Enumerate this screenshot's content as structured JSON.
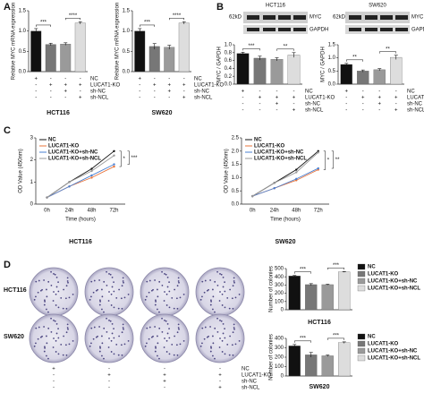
{
  "panel_labels": [
    "A",
    "B",
    "C",
    "D"
  ],
  "sign_table": {
    "rows": [
      "NC",
      "LUCAT1-KO",
      "sh-NC",
      "sh-NCL"
    ],
    "marks": [
      [
        "+",
        "-",
        "-",
        "-"
      ],
      [
        "-",
        "+",
        "+",
        "+"
      ],
      [
        "-",
        "-",
        "+",
        "-"
      ],
      [
        "-",
        "-",
        "-",
        "+"
      ]
    ]
  },
  "blot_labels": {
    "size": "62kD",
    "target": "MYC",
    "control": "GAPDH"
  },
  "chart_data": [
    {
      "type": "bar",
      "title": "HCT116",
      "ylabel": "Relative MYC mRNA expression",
      "values": [
        1.0,
        0.67,
        0.68,
        1.2
      ],
      "errors": [
        0.06,
        0.03,
        0.03,
        0.03
      ],
      "colors": [
        "#111111",
        "#777777",
        "#9a9a9a",
        "#dddddd"
      ],
      "ylim": [
        0,
        1.5
      ],
      "yticks": [
        {
          "value": 0,
          "label": "0.0"
        },
        {
          "value": 0.5,
          "label": "0.5"
        },
        {
          "value": 1,
          "label": "1.0"
        },
        {
          "value": 1.5,
          "label": "1.5"
        }
      ],
      "annotations": [
        "***",
        "****"
      ]
    },
    {
      "type": "bar",
      "title": "SW620",
      "ylabel": "Relative MYC mRNA expression",
      "values": [
        1.0,
        0.62,
        0.6,
        1.2
      ],
      "errors": [
        0.06,
        0.07,
        0.05,
        0.03
      ],
      "colors": [
        "#111111",
        "#777777",
        "#9a9a9a",
        "#dddddd"
      ],
      "ylim": [
        0,
        1.5
      ],
      "yticks": [
        {
          "value": 0,
          "label": "0.0"
        },
        {
          "value": 0.5,
          "label": "0.5"
        },
        {
          "value": 1,
          "label": "1.0"
        },
        {
          "value": 1.5,
          "label": "1.5"
        }
      ],
      "annotations": [
        "***",
        "****"
      ]
    },
    {
      "type": "bar",
      "title": "HCT116",
      "ylabel": "MYC / GAPDH",
      "values": [
        0.78,
        0.66,
        0.63,
        0.74
      ],
      "errors": [
        0.03,
        0.05,
        0.04,
        0.06
      ],
      "colors": [
        "#111111",
        "#777777",
        "#9a9a9a",
        "#dddddd"
      ],
      "ylim": [
        0,
        1.0
      ],
      "yticks": [
        {
          "value": 0,
          "label": "0.0"
        },
        {
          "value": 0.2,
          "label": "0.2"
        },
        {
          "value": 0.4,
          "label": "0.4"
        },
        {
          "value": 0.6,
          "label": "0.6"
        },
        {
          "value": 0.8,
          "label": "0.8"
        },
        {
          "value": 1,
          "label": "1.0"
        }
      ],
      "annotations": [
        "***",
        "**"
      ]
    },
    {
      "type": "bar",
      "title": "SW620",
      "ylabel": "MYC / GAPDH",
      "values": [
        0.75,
        0.5,
        0.55,
        1.02
      ],
      "errors": [
        0.04,
        0.04,
        0.04,
        0.08
      ],
      "colors": [
        "#111111",
        "#777777",
        "#9a9a9a",
        "#dddddd"
      ],
      "ylim": [
        0,
        1.5
      ],
      "yticks": [
        {
          "value": 0,
          "label": "0.0"
        },
        {
          "value": 0.5,
          "label": "0.5"
        },
        {
          "value": 1,
          "label": "1.0"
        },
        {
          "value": 1.5,
          "label": "1.5"
        }
      ],
      "annotations": [
        "**",
        "**"
      ]
    },
    {
      "type": "line",
      "title": "HCT116",
      "xlabel": "Time (hours)",
      "ylabel": "OD Value (450nm)",
      "categories": [
        "0h",
        "24h",
        "48h",
        "72h"
      ],
      "ylim": [
        0,
        3
      ],
      "yticks": [
        0,
        1,
        2,
        3
      ],
      "series": [
        {
          "name": "NC",
          "color": "#111111",
          "values": [
            0.3,
            1.0,
            1.6,
            2.4
          ]
        },
        {
          "name": "LUCAT1-KO",
          "color": "#e8743b",
          "values": [
            0.3,
            0.8,
            1.2,
            1.7
          ]
        },
        {
          "name": "LUCAT1-KO+sh-NC",
          "color": "#4a7fd0",
          "values": [
            0.3,
            0.8,
            1.3,
            1.8
          ]
        },
        {
          "name": "LUCAT1-KO+sh-NCL",
          "color": "#999999",
          "values": [
            0.3,
            1.0,
            1.5,
            2.2
          ]
        }
      ],
      "annotations": [
        "*",
        "***"
      ]
    },
    {
      "type": "line",
      "title": "SW620",
      "xlabel": "Time (hours)",
      "ylabel": "OD Value (450nm)",
      "categories": [
        "0h",
        "24h",
        "48h",
        "72h"
      ],
      "ylim": [
        0,
        2.5
      ],
      "yticks": [
        {
          "value": 0,
          "label": "0.0"
        },
        {
          "value": 0.5,
          "label": "0.5"
        },
        {
          "value": 1,
          "label": "1.0"
        },
        {
          "value": 1.5,
          "label": "1.5"
        },
        {
          "value": 2,
          "label": "2.0"
        },
        {
          "value": 2.5,
          "label": "2.5"
        }
      ],
      "series": [
        {
          "name": "NC",
          "color": "#111111",
          "values": [
            0.3,
            0.8,
            1.3,
            2.0
          ]
        },
        {
          "name": "LUCAT1-KO",
          "color": "#e8743b",
          "values": [
            0.3,
            0.6,
            0.9,
            1.3
          ]
        },
        {
          "name": "LUCAT1-KO+sh-NC",
          "color": "#4a7fd0",
          "values": [
            0.3,
            0.6,
            0.95,
            1.35
          ]
        },
        {
          "name": "LUCAT1-KO+sh-NCL",
          "color": "#999999",
          "values": [
            0.3,
            0.8,
            1.2,
            1.95
          ]
        }
      ],
      "annotations": [
        "*",
        "**"
      ]
    },
    {
      "type": "bar",
      "title": "HCT116",
      "ylabel": "Number of colonies",
      "categories": [
        "NC",
        "LUCAT1-KO",
        "LUCAT1-KO+sh-NC",
        "LUCAT1-KO+sh-NCL"
      ],
      "values": [
        410,
        305,
        305,
        460
      ],
      "errors": [
        6,
        12,
        5,
        5
      ],
      "colors": [
        "#111111",
        "#777777",
        "#9a9a9a",
        "#dddddd"
      ],
      "ylim": [
        0,
        500
      ],
      "yticks": [
        0,
        100,
        200,
        300,
        400,
        500
      ],
      "annotations": [
        "***",
        "***"
      ]
    },
    {
      "type": "bar",
      "title": "SW620",
      "ylabel": "Number of colonies",
      "categories": [
        "NC",
        "LUCAT1-KO",
        "LUCAT1-KO+sh-NC",
        "LUCAT1-KO+sh-NCL"
      ],
      "values": [
        320,
        225,
        215,
        355
      ],
      "errors": [
        15,
        25,
        8,
        8
      ],
      "colors": [
        "#111111",
        "#777777",
        "#9a9a9a",
        "#dddddd"
      ],
      "ylim": [
        0,
        400
      ],
      "yticks": [
        0,
        100,
        200,
        300,
        400
      ],
      "annotations": [
        "***",
        "***"
      ]
    }
  ]
}
